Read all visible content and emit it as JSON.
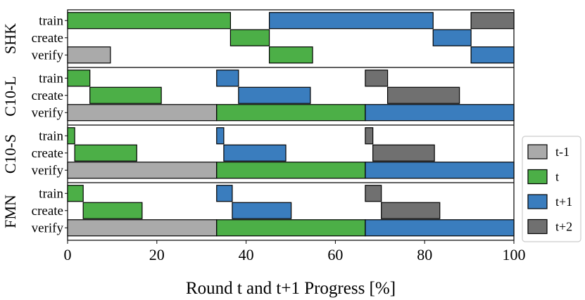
{
  "chart_data": {
    "type": "bar",
    "orientation": "horizontal",
    "xlabel": "Round t and t+1 Progress [%]",
    "xlim": [
      0,
      100
    ],
    "xticks": [
      0,
      20,
      40,
      60,
      80,
      100
    ],
    "rows": [
      "train",
      "create",
      "verify"
    ],
    "legend": {
      "placement": "right",
      "entries": [
        "t-1",
        "t",
        "t+1",
        "t+2"
      ]
    },
    "series_colors": {
      "t-1": "#aaaaaa",
      "t": "#4caf47",
      "t+1": "#3a7dbe",
      "t+2": "#707070"
    },
    "groups": [
      {
        "name": "SHK",
        "bars": [
          {
            "row": "train",
            "series": "t",
            "start": 0,
            "end": 36.5
          },
          {
            "row": "train",
            "series": "t+1",
            "start": 45.2,
            "end": 81.9
          },
          {
            "row": "train",
            "series": "t+2",
            "start": 90.4,
            "end": 100
          },
          {
            "row": "create",
            "series": "t",
            "start": 36.5,
            "end": 45.2
          },
          {
            "row": "create",
            "series": "t+1",
            "start": 81.9,
            "end": 90.4
          },
          {
            "row": "verify",
            "series": "t-1",
            "start": 0,
            "end": 9.6
          },
          {
            "row": "verify",
            "series": "t",
            "start": 45.2,
            "end": 54.9
          },
          {
            "row": "verify",
            "series": "t+1",
            "start": 90.4,
            "end": 100
          }
        ]
      },
      {
        "name": "C10-L",
        "bars": [
          {
            "row": "train",
            "series": "t",
            "start": 0,
            "end": 5.0
          },
          {
            "row": "train",
            "series": "t+1",
            "start": 33.4,
            "end": 38.3
          },
          {
            "row": "train",
            "series": "t+2",
            "start": 66.7,
            "end": 71.7
          },
          {
            "row": "create",
            "series": "t",
            "start": 5.0,
            "end": 21.0
          },
          {
            "row": "create",
            "series": "t+1",
            "start": 38.3,
            "end": 54.4
          },
          {
            "row": "create",
            "series": "t+2",
            "start": 71.7,
            "end": 87.8
          },
          {
            "row": "verify",
            "series": "t-1",
            "start": 0,
            "end": 33.4
          },
          {
            "row": "verify",
            "series": "t",
            "start": 33.4,
            "end": 66.7
          },
          {
            "row": "verify",
            "series": "t+1",
            "start": 66.7,
            "end": 100
          }
        ]
      },
      {
        "name": "C10-S",
        "bars": [
          {
            "row": "train",
            "series": "t",
            "start": 0,
            "end": 1.6
          },
          {
            "row": "train",
            "series": "t+1",
            "start": 33.4,
            "end": 35.0
          },
          {
            "row": "train",
            "series": "t+2",
            "start": 66.7,
            "end": 68.4
          },
          {
            "row": "create",
            "series": "t",
            "start": 1.6,
            "end": 15.5
          },
          {
            "row": "create",
            "series": "t+1",
            "start": 35.0,
            "end": 48.9
          },
          {
            "row": "create",
            "series": "t+2",
            "start": 68.4,
            "end": 82.2
          },
          {
            "row": "verify",
            "series": "t-1",
            "start": 0,
            "end": 33.4
          },
          {
            "row": "verify",
            "series": "t",
            "start": 33.4,
            "end": 66.7
          },
          {
            "row": "verify",
            "series": "t+1",
            "start": 66.7,
            "end": 100
          }
        ]
      },
      {
        "name": "FMN",
        "bars": [
          {
            "row": "train",
            "series": "t",
            "start": 0,
            "end": 3.5
          },
          {
            "row": "train",
            "series": "t+1",
            "start": 33.4,
            "end": 36.9
          },
          {
            "row": "train",
            "series": "t+2",
            "start": 66.7,
            "end": 70.3
          },
          {
            "row": "create",
            "series": "t",
            "start": 3.5,
            "end": 16.7
          },
          {
            "row": "create",
            "series": "t+1",
            "start": 36.9,
            "end": 50.1
          },
          {
            "row": "create",
            "series": "t+2",
            "start": 70.3,
            "end": 83.4
          },
          {
            "row": "verify",
            "series": "t-1",
            "start": 0,
            "end": 33.4
          },
          {
            "row": "verify",
            "series": "t",
            "start": 33.4,
            "end": 66.7
          },
          {
            "row": "verify",
            "series": "t+1",
            "start": 66.7,
            "end": 100
          }
        ]
      }
    ]
  }
}
